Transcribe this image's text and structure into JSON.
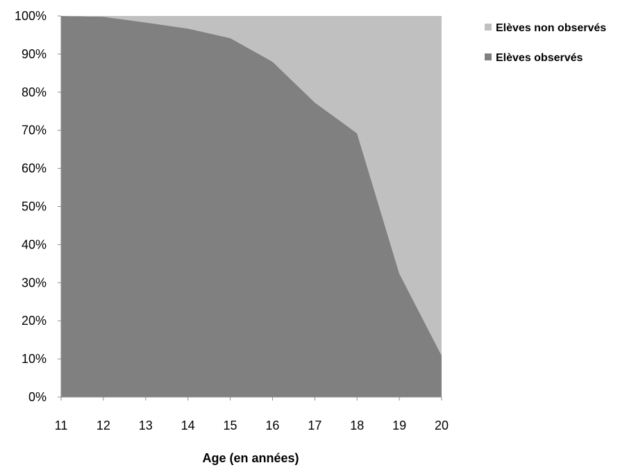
{
  "chart_data": {
    "type": "area",
    "stacked": "percent",
    "title": "",
    "xlabel": "Age (en années)",
    "ylabel": "",
    "x": [
      11,
      12,
      13,
      14,
      15,
      16,
      17,
      18,
      19,
      20
    ],
    "x_tick_labels": [
      "11",
      "12",
      "13",
      "14",
      "15",
      "16",
      "17",
      "18",
      "19",
      "20"
    ],
    "y_tick_labels": [
      "0%",
      "10%",
      "20%",
      "30%",
      "40%",
      "50%",
      "60%",
      "70%",
      "80%",
      "90%",
      "100%"
    ],
    "ylim": [
      0,
      100
    ],
    "y_unit": "%",
    "grid": false,
    "legend_position": "right",
    "series": [
      {
        "name": "Elèves observés",
        "color": "#808080",
        "values": [
          100,
          99.8,
          98.3,
          96.7,
          94.2,
          88.0,
          77.3,
          69.2,
          32.4,
          10.9
        ]
      },
      {
        "name": "Elèves non observés",
        "color": "#c0c0c0",
        "values": [
          0,
          0.2,
          1.7,
          3.3,
          5.8,
          12.0,
          22.7,
          30.8,
          67.6,
          89.1
        ]
      }
    ],
    "legend_order": [
      "Elèves non observés",
      "Elèves observés"
    ]
  }
}
